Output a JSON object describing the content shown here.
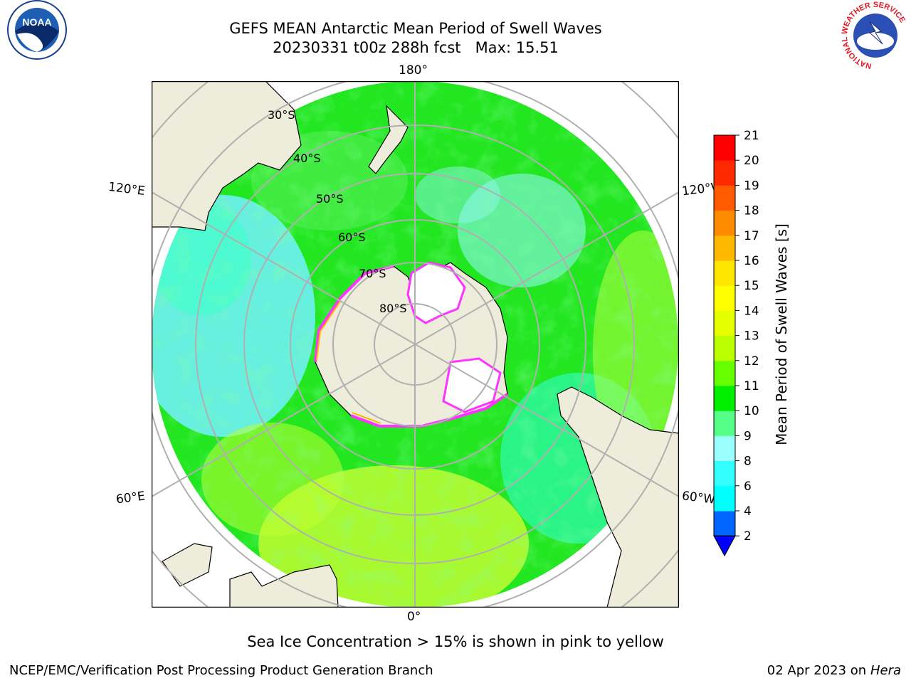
{
  "title": {
    "line1": "GEFS MEAN Antarctic Mean Period of Swell Waves",
    "line2": "20230331 t00z 288h fcst   Max: 15.51"
  },
  "logos": {
    "noara": {
      "text": "NOAA",
      "ring": "NATIONAL OCEANIC AND ATMOSPHERIC ADMINISTRATION · U.S. DEPARTMENT OF COMMERCE"
    },
    "nws": {
      "ring": "NATIONAL WEATHER SERVICE"
    }
  },
  "map": {
    "lon_labels": {
      "top": "180°",
      "bottom": "0°",
      "upper_left": "120°E",
      "upper_right": "120°W",
      "lower_left": "60°E",
      "lower_right": "60°W"
    },
    "lat_labels": [
      "30°S",
      "40°S",
      "50°S",
      "60°S",
      "70°S",
      "80°S"
    ],
    "colors": {
      "ocean_base": "#22e61f",
      "land": "#eeecdb",
      "ice": "#ffffff",
      "ice_edge": "#ff33ff",
      "grid": "#b0b0b0"
    }
  },
  "colorbar": {
    "label": "Mean Period of Swell Waves [s]",
    "ticks": [
      "2",
      "4",
      "6",
      "8",
      "9",
      "10",
      "11",
      "12",
      "13",
      "14",
      "15",
      "16",
      "17",
      "18",
      "19",
      "20",
      "21"
    ],
    "colors": [
      "#0066ff",
      "#00ffff",
      "#33ffff",
      "#99ffff",
      "#55ff88",
      "#00ee00",
      "#66ff00",
      "#bbff00",
      "#e6ff00",
      "#ffff00",
      "#ffe600",
      "#ffb800",
      "#ff8c00",
      "#ff5a00",
      "#ff2a00",
      "#ff0000"
    ],
    "extend_color": "#0000ff"
  },
  "footnote": "Sea Ice Concentration > 15% is shown in pink to yellow",
  "footer": {
    "left": "NCEP/EMC/Verification Post Processing Product Generation Branch",
    "right_date": "02 Apr 2023 on ",
    "right_host": "Hera"
  }
}
